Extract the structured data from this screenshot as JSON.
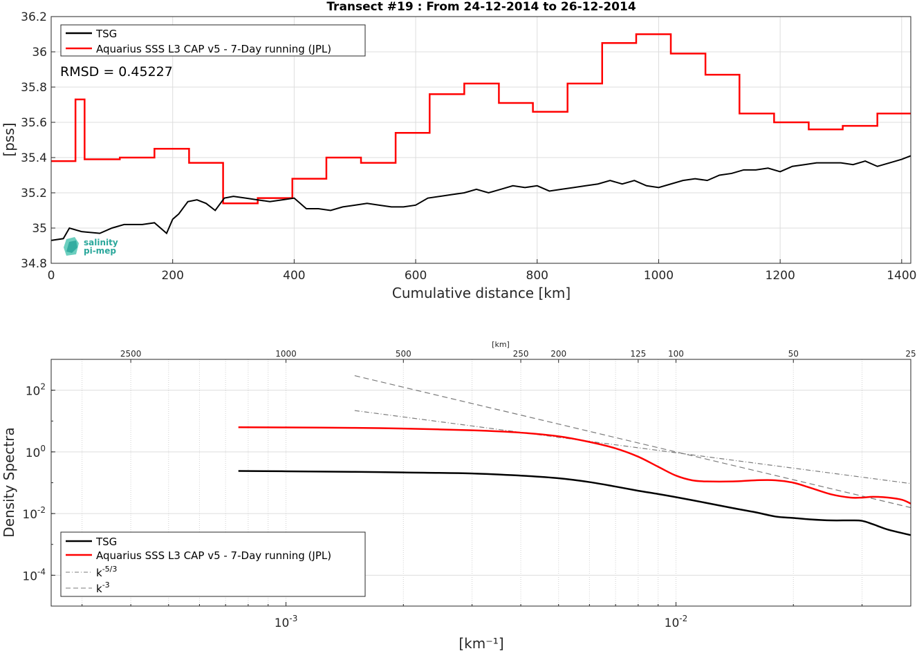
{
  "figure_title": "Transect #19 : From 24-12-2014 to 26-12-2014",
  "logo": {
    "line1": "salinity",
    "line2": "pi-mep",
    "color": "#2aa79b"
  },
  "colors": {
    "tsg": "#000000",
    "aquarius": "#ff0000",
    "ref": "#7a7a7a",
    "grid": "#dddddd"
  },
  "chart_data": [
    {
      "type": "line",
      "title": "Transect #19 : From 24-12-2014 to 26-12-2014",
      "xlabel": "Cumulative distance [km]",
      "ylabel": "[pss]",
      "xlim": [
        0,
        1415
      ],
      "ylim": [
        34.8,
        36.2
      ],
      "xticks": [
        0,
        200,
        400,
        600,
        800,
        1000,
        1200,
        1400
      ],
      "yticks": [
        34.8,
        35,
        35.2,
        35.4,
        35.6,
        35.8,
        36,
        36.2
      ],
      "grid": true,
      "legend_position": "top-left",
      "annotation": "RMSD = 0.45227",
      "series": [
        {
          "name": "TSG",
          "color": "#000000",
          "x": [
            0,
            20,
            30,
            50,
            80,
            100,
            120,
            150,
            170,
            190,
            200,
            210,
            225,
            240,
            255,
            270,
            285,
            300,
            320,
            340,
            360,
            380,
            400,
            420,
            440,
            460,
            480,
            500,
            520,
            540,
            560,
            580,
            600,
            620,
            640,
            660,
            680,
            700,
            720,
            740,
            760,
            780,
            800,
            820,
            840,
            860,
            880,
            900,
            920,
            940,
            960,
            980,
            1000,
            1020,
            1040,
            1060,
            1080,
            1100,
            1120,
            1140,
            1160,
            1180,
            1200,
            1220,
            1240,
            1260,
            1280,
            1300,
            1320,
            1340,
            1360,
            1380,
            1400,
            1415
          ],
          "y": [
            34.93,
            34.94,
            35.0,
            34.98,
            34.97,
            35.0,
            35.02,
            35.02,
            35.03,
            34.97,
            35.05,
            35.08,
            35.15,
            35.16,
            35.14,
            35.1,
            35.17,
            35.18,
            35.17,
            35.16,
            35.15,
            35.16,
            35.17,
            35.11,
            35.11,
            35.1,
            35.12,
            35.13,
            35.14,
            35.13,
            35.12,
            35.12,
            35.13,
            35.17,
            35.18,
            35.19,
            35.2,
            35.22,
            35.2,
            35.22,
            35.24,
            35.23,
            35.24,
            35.21,
            35.22,
            35.23,
            35.24,
            35.25,
            35.27,
            35.25,
            35.27,
            35.24,
            35.23,
            35.25,
            35.27,
            35.28,
            35.27,
            35.3,
            35.31,
            35.33,
            35.33,
            35.34,
            35.32,
            35.35,
            35.36,
            35.37,
            35.37,
            35.37,
            35.36,
            35.38,
            35.35,
            35.37,
            35.39,
            35.41
          ]
        },
        {
          "name": "Aquarius SSS L3 CAP v5 - 7-Day running (JPL)",
          "color": "#ff0000",
          "x": [
            0,
            40,
            40,
            55,
            55,
            113,
            113,
            170,
            170,
            227,
            227,
            283,
            283,
            340,
            340,
            397,
            397,
            453,
            453,
            510,
            510,
            567,
            567,
            623,
            623,
            680,
            680,
            737,
            737,
            793,
            793,
            850,
            850,
            907,
            907,
            963,
            963,
            1020,
            1020,
            1077,
            1077,
            1133,
            1133,
            1190,
            1190,
            1247,
            1247,
            1303,
            1303,
            1360,
            1360,
            1415
          ],
          "y": [
            35.38,
            35.38,
            35.73,
            35.73,
            35.39,
            35.39,
            35.4,
            35.4,
            35.45,
            35.45,
            35.37,
            35.37,
            35.14,
            35.14,
            35.17,
            35.17,
            35.28,
            35.28,
            35.4,
            35.4,
            35.37,
            35.37,
            35.54,
            35.54,
            35.76,
            35.76,
            35.82,
            35.82,
            35.71,
            35.71,
            35.66,
            35.66,
            35.82,
            35.82,
            36.05,
            36.05,
            36.1,
            36.1,
            35.99,
            35.99,
            35.87,
            35.87,
            35.65,
            35.65,
            35.6,
            35.6,
            35.56,
            35.56,
            35.58,
            35.58,
            35.65,
            35.65
          ]
        }
      ]
    },
    {
      "type": "line",
      "title": "",
      "xlabel": "[km⁻¹]",
      "ylabel": "Density Spectra",
      "top_axis_label": "[km]",
      "xscale": "log",
      "yscale": "log",
      "xlim": [
        0.00025,
        0.04
      ],
      "ylim": [
        1e-05,
        1000
      ],
      "xticks": [
        {
          "value": 0.001,
          "base": "10",
          "exp": "-3"
        },
        {
          "value": 0.01,
          "base": "10",
          "exp": "-2"
        }
      ],
      "yticks": [
        {
          "value": 0.0001,
          "base": "10",
          "exp": "-4"
        },
        {
          "value": 0.01,
          "base": "10",
          "exp": "-2"
        },
        {
          "value": 1,
          "base": "10",
          "exp": "0"
        },
        {
          "value": 100,
          "base": "10",
          "exp": "2"
        }
      ],
      "top_ticks": [
        {
          "km": 2500,
          "label": "2500"
        },
        {
          "km": 1000,
          "label": "1000"
        },
        {
          "km": 500,
          "label": "500"
        },
        {
          "km": 250,
          "label": "250"
        },
        {
          "km": 200,
          "label": "200"
        },
        {
          "km": 125,
          "label": "125"
        },
        {
          "km": 100,
          "label": "100"
        },
        {
          "km": 50,
          "label": "50"
        },
        {
          "km": 25,
          "label": "25"
        }
      ],
      "grid": true,
      "legend_position": "bottom-left",
      "series": [
        {
          "name": "TSG",
          "color": "#000000",
          "style": "solid",
          "x": [
            0.000755,
            0.001,
            0.0015,
            0.002,
            0.003,
            0.004,
            0.005,
            0.006,
            0.007,
            0.008,
            0.009,
            0.01,
            0.012,
            0.014,
            0.016,
            0.018,
            0.02,
            0.022,
            0.025,
            0.028,
            0.03,
            0.032,
            0.035,
            0.04
          ],
          "y": [
            0.24,
            0.235,
            0.225,
            0.215,
            0.2,
            0.17,
            0.14,
            0.105,
            0.075,
            0.055,
            0.043,
            0.034,
            0.022,
            0.015,
            0.011,
            0.008,
            0.0072,
            0.0065,
            0.006,
            0.006,
            0.0058,
            0.0045,
            0.003,
            0.002
          ]
        },
        {
          "name": "Aquarius SSS L3 CAP v5 - 7-Day running (JPL)",
          "color": "#ff0000",
          "style": "solid",
          "x": [
            0.000755,
            0.001,
            0.0015,
            0.002,
            0.003,
            0.004,
            0.005,
            0.006,
            0.007,
            0.008,
            0.009,
            0.01,
            0.011,
            0.012,
            0.014,
            0.016,
            0.018,
            0.02,
            0.022,
            0.025,
            0.028,
            0.03,
            0.032,
            0.035,
            0.038,
            0.04
          ],
          "y": [
            6.3,
            6.2,
            6.0,
            5.7,
            5.0,
            4.2,
            3.2,
            2.1,
            1.3,
            0.7,
            0.33,
            0.17,
            0.12,
            0.11,
            0.11,
            0.12,
            0.12,
            0.1,
            0.07,
            0.042,
            0.033,
            0.033,
            0.035,
            0.033,
            0.028,
            0.021
          ]
        },
        {
          "name": "k-5/3",
          "legend_base": "k",
          "legend_exp": "-5/3",
          "color": "#7a7a7a",
          "style": "dashdot",
          "x": [
            0.0015,
            0.04
          ],
          "y": [
            21.9,
            0.094
          ]
        },
        {
          "name": "k-3",
          "legend_base": "k",
          "legend_exp": "-3",
          "color": "#7a7a7a",
          "style": "dashed",
          "x": [
            0.0015,
            0.04
          ],
          "y": [
            296,
            0.0156
          ]
        }
      ]
    }
  ]
}
